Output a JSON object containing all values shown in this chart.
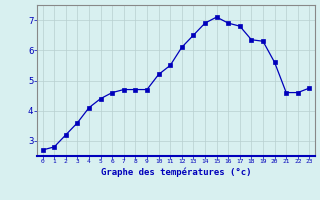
{
  "x": [
    0,
    1,
    2,
    3,
    4,
    5,
    6,
    7,
    8,
    9,
    10,
    11,
    12,
    13,
    14,
    15,
    16,
    17,
    18,
    19,
    20,
    21,
    22,
    23
  ],
  "y": [
    2.7,
    2.8,
    3.2,
    3.6,
    4.1,
    4.4,
    4.6,
    4.7,
    4.7,
    4.7,
    5.2,
    5.5,
    6.1,
    6.5,
    6.9,
    7.1,
    6.9,
    6.8,
    6.35,
    6.3,
    5.6,
    4.6,
    4.6,
    4.75
  ],
  "xlabel": "Graphe des températures (°c)",
  "ylim": [
    2.5,
    7.5
  ],
  "xlim": [
    -0.5,
    23.5
  ],
  "yticks": [
    3,
    4,
    5,
    6,
    7
  ],
  "xticks": [
    0,
    1,
    2,
    3,
    4,
    5,
    6,
    7,
    8,
    9,
    10,
    11,
    12,
    13,
    14,
    15,
    16,
    17,
    18,
    19,
    20,
    21,
    22,
    23
  ],
  "line_color": "#0000bb",
  "marker_color": "#0000bb",
  "bg_color": "#d8f0f0",
  "grid_color": "#b8d0d0",
  "tick_color": "#0000bb",
  "label_color": "#0000bb",
  "border_color": "#888888",
  "bottom_border_color": "#0000bb"
}
